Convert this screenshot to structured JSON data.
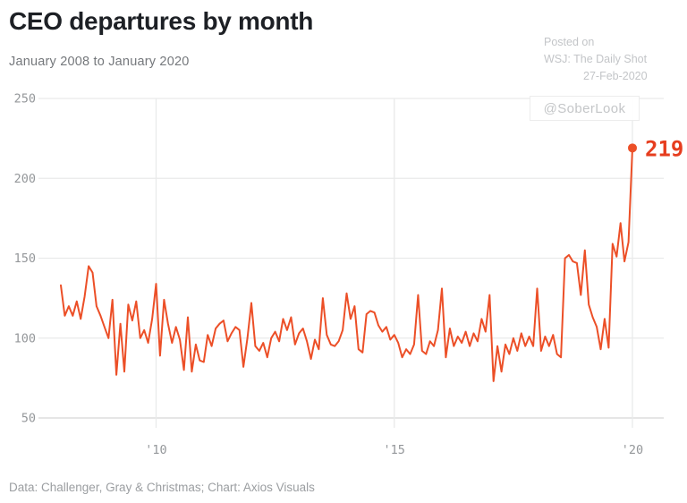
{
  "header": {
    "title": "CEO departures by month",
    "subtitle": "January 2008 to January 2020"
  },
  "watermark": {
    "lines": [
      "Posted on",
      "WSJ: The Daily Shot",
      "27-Feb-2020"
    ],
    "handle": "@SoberLook"
  },
  "footer": {
    "source": "Data: Challenger, Gray & Christmas; Chart: Axios Visuals"
  },
  "colors": {
    "accent_line": "#ec4f27",
    "annotation_red": "#e63d1e",
    "gridline": "#e9eaea",
    "axis_line": "#d6d7d8",
    "tick_label": "#94979a",
    "title_text": "#1d2025",
    "subtitle_text": "#75787c",
    "watermark_text": "#c3c5c8",
    "footer_text": "#9b9ea1"
  },
  "chart_data": {
    "type": "line",
    "title": "CEO departures by month",
    "subtitle": "January 2008 to January 2020",
    "x_unit": "month",
    "x_range": [
      "2008-01",
      "2020-01"
    ],
    "x_ticks": [
      {
        "label": "'10",
        "month_index": 24
      },
      {
        "label": "'15",
        "month_index": 84
      },
      {
        "label": "'20",
        "month_index": 144
      }
    ],
    "y_ticks": [
      250,
      200,
      150,
      100,
      50
    ],
    "ylim": [
      50,
      250
    ],
    "grid": true,
    "legend": "none",
    "series": [
      {
        "name": "CEO departures",
        "values": [
          133,
          114,
          120,
          114,
          123,
          112,
          126,
          145,
          141,
          120,
          114,
          107,
          100,
          124,
          77,
          109,
          79,
          121,
          111,
          123,
          100,
          105,
          97,
          112,
          134,
          89,
          124,
          109,
          97,
          107,
          99,
          80,
          113,
          79,
          96,
          86,
          85,
          102,
          95,
          106,
          109,
          111,
          98,
          103,
          107,
          105,
          82,
          100,
          122,
          95,
          92,
          97,
          88,
          100,
          104,
          98,
          112,
          105,
          113,
          96,
          103,
          106,
          98,
          87,
          99,
          93,
          125,
          102,
          96,
          95,
          98,
          105,
          128,
          112,
          120,
          93,
          91,
          115,
          117,
          116,
          108,
          104,
          107,
          99,
          102,
          97,
          88,
          93,
          90,
          96,
          127,
          92,
          90,
          98,
          95,
          105,
          131,
          88,
          106,
          95,
          101,
          97,
          104,
          95,
          103,
          98,
          112,
          104,
          127,
          73,
          95,
          79,
          96,
          90,
          100,
          92,
          103,
          95,
          101,
          95,
          131,
          92,
          101,
          95,
          102,
          90,
          88,
          150,
          152,
          148,
          147,
          127,
          155,
          121,
          113,
          107,
          93,
          112,
          94,
          159,
          151,
          172,
          148,
          160,
          219
        ]
      }
    ],
    "end_annotation": {
      "label": "219",
      "value": 219,
      "month": "2020-01"
    }
  }
}
